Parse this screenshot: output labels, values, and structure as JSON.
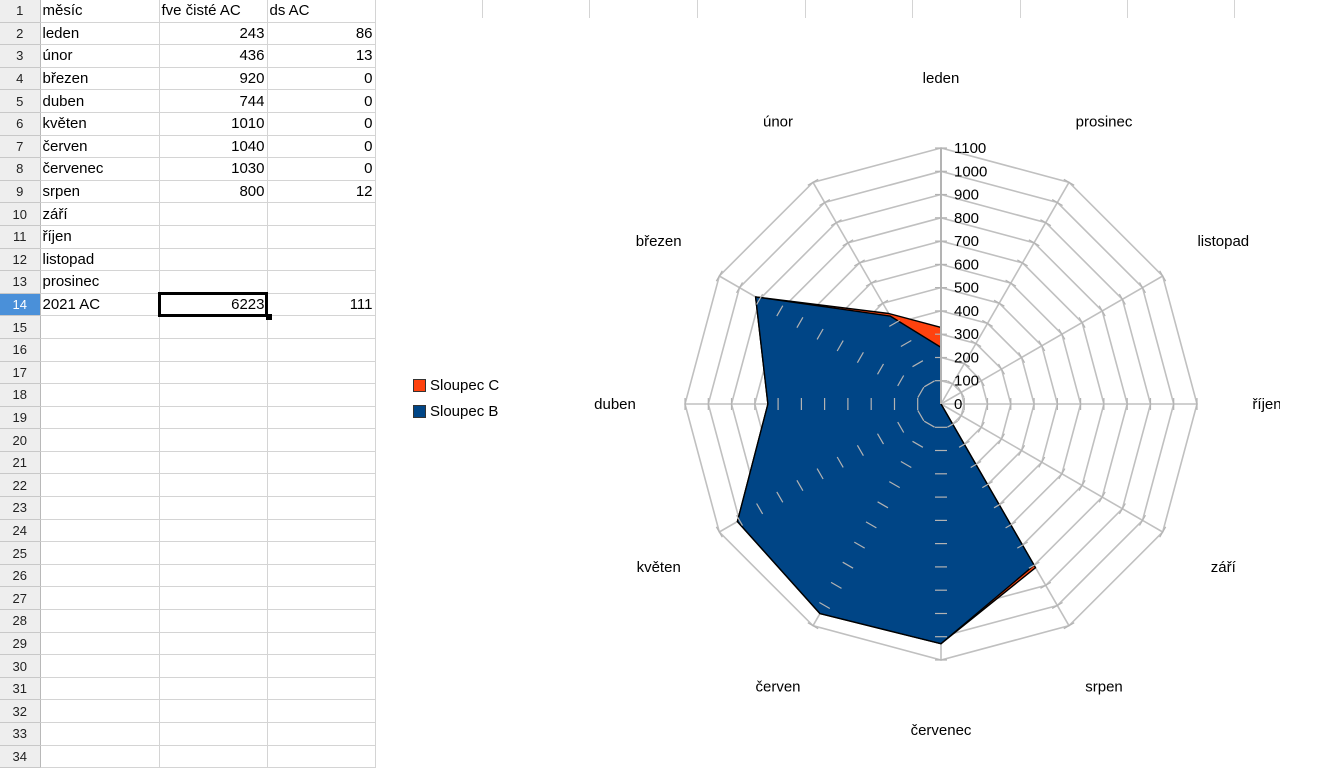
{
  "sheet": {
    "rows": [
      {
        "n": "1",
        "a": "měsíc",
        "b": "fve čisté AC",
        "c": "ds AC"
      },
      {
        "n": "2",
        "a": "leden",
        "b": "243",
        "c": "86"
      },
      {
        "n": "3",
        "a": "únor",
        "b": "436",
        "c": "13"
      },
      {
        "n": "4",
        "a": "březen",
        "b": "920",
        "c": "0"
      },
      {
        "n": "5",
        "a": "duben",
        "b": "744",
        "c": "0"
      },
      {
        "n": "6",
        "a": "květen",
        "b": "1010",
        "c": "0"
      },
      {
        "n": "7",
        "a": "červen",
        "b": "1040",
        "c": "0"
      },
      {
        "n": "8",
        "a": "červenec",
        "b": "1030",
        "c": "0"
      },
      {
        "n": "9",
        "a": "srpen",
        "b": "800",
        "c": "12"
      },
      {
        "n": "10",
        "a": "září",
        "b": "",
        "c": ""
      },
      {
        "n": "11",
        "a": "říjen",
        "b": "",
        "c": ""
      },
      {
        "n": "12",
        "a": "listopad",
        "b": "",
        "c": ""
      },
      {
        "n": "13",
        "a": "prosinec",
        "b": "",
        "c": ""
      },
      {
        "n": "14",
        "a": "2021 AC",
        "b": "6223",
        "c": "111"
      },
      {
        "n": "15",
        "a": "",
        "b": "",
        "c": ""
      },
      {
        "n": "16",
        "a": "",
        "b": "",
        "c": ""
      },
      {
        "n": "17",
        "a": "",
        "b": "",
        "c": ""
      },
      {
        "n": "18",
        "a": "",
        "b": "",
        "c": ""
      },
      {
        "n": "19",
        "a": "",
        "b": "",
        "c": ""
      },
      {
        "n": "20",
        "a": "",
        "b": "",
        "c": ""
      },
      {
        "n": "21",
        "a": "",
        "b": "",
        "c": ""
      },
      {
        "n": "22",
        "a": "",
        "b": "",
        "c": ""
      },
      {
        "n": "23",
        "a": "",
        "b": "",
        "c": ""
      },
      {
        "n": "24",
        "a": "",
        "b": "",
        "c": ""
      },
      {
        "n": "25",
        "a": "",
        "b": "",
        "c": ""
      },
      {
        "n": "26",
        "a": "",
        "b": "",
        "c": ""
      },
      {
        "n": "27",
        "a": "",
        "b": "",
        "c": ""
      },
      {
        "n": "28",
        "a": "",
        "b": "",
        "c": ""
      },
      {
        "n": "29",
        "a": "",
        "b": "",
        "c": ""
      },
      {
        "n": "30",
        "a": "",
        "b": "",
        "c": ""
      },
      {
        "n": "31",
        "a": "",
        "b": "",
        "c": ""
      },
      {
        "n": "32",
        "a": "",
        "b": "",
        "c": ""
      },
      {
        "n": "33",
        "a": "",
        "b": "",
        "c": ""
      },
      {
        "n": "34",
        "a": "",
        "b": "",
        "c": ""
      }
    ],
    "active_row": "14",
    "selected_cell": "B14"
  },
  "chart_data": {
    "type": "radar",
    "categories": [
      "leden",
      "únor",
      "březen",
      "duben",
      "květen",
      "červen",
      "červenec",
      "srpen",
      "září",
      "říjen",
      "listopad",
      "prosinec"
    ],
    "series": [
      {
        "name": "Sloupec C",
        "color": "#ff420e",
        "values": [
          329,
          449,
          920,
          744,
          1010,
          1040,
          1030,
          812,
          0,
          0,
          0,
          0
        ]
      },
      {
        "name": "Sloupec B",
        "color": "#004586",
        "values": [
          243,
          436,
          920,
          744,
          1010,
          1040,
          1030,
          800,
          0,
          0,
          0,
          0
        ]
      }
    ],
    "legend_order": [
      "Sloupec C",
      "Sloupec B"
    ],
    "r_ticks": [
      "0",
      "100",
      "200",
      "300",
      "400",
      "500",
      "600",
      "700",
      "800",
      "900",
      "1000",
      "1100"
    ],
    "r_max": 1100,
    "grid": true,
    "legend_position": "left"
  }
}
